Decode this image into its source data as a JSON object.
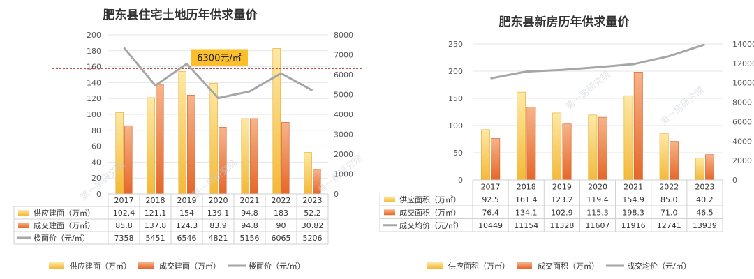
{
  "colors": {
    "supply": "#f6c445",
    "deal": "#ec7a3a",
    "price_line": "#a6a6a6",
    "ref_line": "#c0504d",
    "callout_bg": "#fbbf2b",
    "grid": "#e6e6e6",
    "table_border": "#d0d0d0",
    "watermark": "#c9ced6"
  },
  "watermark_text": "第一房研究院",
  "chart_data": [
    {
      "type": "bar",
      "title": "肥东县住宅土地历年供求量价",
      "categories": [
        "2017",
        "2018",
        "2019",
        "2020",
        "2021",
        "2022",
        "2023"
      ],
      "series": [
        {
          "name": "供应建面（万㎡）",
          "kind": "bar",
          "axis": "left",
          "values": [
            102.4,
            121.1,
            154,
            139.1,
            94.8,
            183,
            52.2
          ],
          "display": [
            "102.4",
            "121.1",
            "154",
            "139.1",
            "94.8",
            "183",
            "52.2"
          ]
        },
        {
          "name": "成交建面（万㎡）",
          "kind": "bar",
          "axis": "left",
          "values": [
            85.8,
            137.8,
            124.3,
            83.9,
            94.8,
            90,
            30.82
          ],
          "display": [
            "85.8",
            "137.8",
            "124.3",
            "83.9",
            "94.8",
            "90",
            "30.82"
          ]
        },
        {
          "name": "楼面价（元/㎡）",
          "kind": "line",
          "axis": "right",
          "values": [
            7358,
            5451,
            6546,
            4821,
            5156,
            6065,
            5206
          ],
          "display": [
            "7358",
            "5451",
            "6546",
            "4821",
            "5156",
            "6065",
            "5206"
          ]
        }
      ],
      "y_left": {
        "min": 0,
        "max": 200,
        "step": 20
      },
      "y_right": {
        "min": 0,
        "max": 8000,
        "step": 1000
      },
      "reference_line": {
        "value": 6300,
        "axis": "right",
        "label": "6300元/㎡"
      },
      "grid": true,
      "legend": "bottom"
    },
    {
      "type": "bar",
      "title": "肥东县新房历年供求量价",
      "categories": [
        "2017",
        "2018",
        "2019",
        "2020",
        "2021",
        "2022",
        "2023"
      ],
      "series": [
        {
          "name": "供应面积（万㎡）",
          "kind": "bar",
          "axis": "left",
          "values": [
            92.5,
            161.4,
            123.2,
            119.4,
            154.9,
            85.0,
            40.2
          ],
          "display": [
            "92.5",
            "161.4",
            "123.2",
            "119.4",
            "154.9",
            "85.0",
            "40.2"
          ]
        },
        {
          "name": "成交面积（万㎡）",
          "kind": "bar",
          "axis": "left",
          "values": [
            76.4,
            134.1,
            102.9,
            115.3,
            198.3,
            71.0,
            46.5
          ],
          "display": [
            "76.4",
            "134.1",
            "102.9",
            "115.3",
            "198.3",
            "71.0",
            "46.5"
          ]
        },
        {
          "name": "成交均价（元/㎡）",
          "kind": "line",
          "axis": "right",
          "values": [
            10449,
            11154,
            11328,
            11607,
            11916,
            12741,
            13939
          ],
          "display": [
            "10449",
            "11154",
            "11328",
            "11607",
            "11916",
            "12741",
            "13939"
          ]
        }
      ],
      "y_left": {
        "min": 0,
        "max": 250,
        "step": 50
      },
      "y_right": {
        "min": 0,
        "max": 14000,
        "step": 2000
      },
      "grid": true,
      "legend": "bottom"
    }
  ]
}
